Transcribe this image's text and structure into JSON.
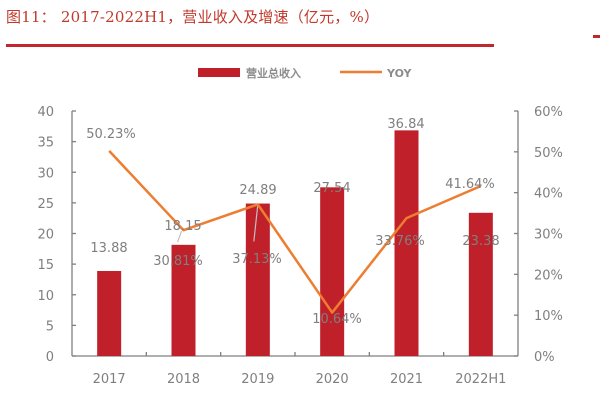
{
  "figure": {
    "title": "图11： 2017-2022H1，营业收入及增速（亿元，%）"
  },
  "legend": {
    "bar_label": "营业总收入",
    "line_label": "YOY"
  },
  "colors": {
    "bar": "#c0202a",
    "line": "#ed7d31",
    "title": "#c0392b",
    "axis": "#7f7f7f",
    "text": "#7f7f7f"
  },
  "chart_data": {
    "type": "bar",
    "title": "2017-2022H1，营业收入及增速（亿元，%）",
    "categories": [
      "2017",
      "2018",
      "2019",
      "2020",
      "2021",
      "2022H1"
    ],
    "series": [
      {
        "name": "营业总收入",
        "type": "bar",
        "axis": "left",
        "values": [
          13.88,
          18.15,
          24.89,
          27.54,
          36.84,
          23.38
        ]
      },
      {
        "name": "YOY",
        "type": "line",
        "axis": "right",
        "values": [
          50.23,
          30.81,
          37.13,
          10.64,
          33.76,
          41.64
        ],
        "unit": "%"
      }
    ],
    "bar_labels": [
      "13.88",
      "18.15",
      "24.89",
      "27.54",
      "36.84",
      "23.38"
    ],
    "line_labels": [
      "50.23%",
      "30.81%",
      "37.13%",
      "10.64%",
      "33.76%",
      "41.64%"
    ],
    "ylim_left": [
      0,
      40
    ],
    "yticks_left": [
      "0",
      "5",
      "10",
      "15",
      "20",
      "25",
      "30",
      "35",
      "40"
    ],
    "ylim_right": [
      0,
      60
    ],
    "yticks_right": [
      "0%",
      "10%",
      "20%",
      "30%",
      "40%",
      "50%",
      "60%"
    ],
    "xlabel": "",
    "ylabel": "",
    "grid": false,
    "legend_position": "top"
  }
}
